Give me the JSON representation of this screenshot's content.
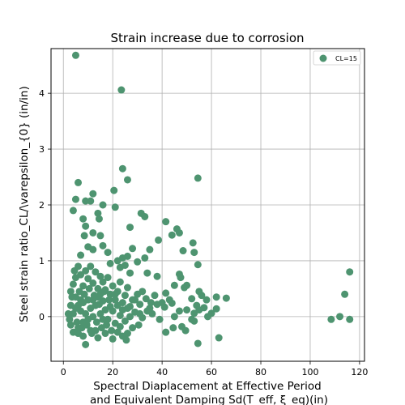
{
  "chart_data": {
    "type": "scatter",
    "title": "Strain increase due to corrosion",
    "xlabel_line1": "Spectral Diaplacement at Effective Period",
    "xlabel_line2": "and Equivalent Damping Sd(T_eff, ξ_eq)(in)",
    "ylabel": "Steel strain ratio_CL/\\varepsilon_{0} (in/in)",
    "xlim": [
      -5,
      122
    ],
    "ylim": [
      -0.8,
      4.8
    ],
    "x_ticks": [
      0,
      20,
      40,
      60,
      80,
      100,
      120
    ],
    "y_ticks": [
      0,
      1,
      2,
      3,
      4
    ],
    "grid": true,
    "legend_position": "top-right",
    "colors": {
      "series": "#4e9470",
      "grid": "#b0b0b0",
      "axis": "#000000"
    },
    "series": [
      {
        "name": "CL=15",
        "points": [
          [
            5,
            4.68
          ],
          [
            23.5,
            4.06
          ],
          [
            24,
            2.65
          ],
          [
            26,
            2.45
          ],
          [
            54.5,
            2.48
          ],
          [
            6,
            2.4
          ],
          [
            5,
            2.1
          ],
          [
            9,
            2.07
          ],
          [
            11,
            2.07
          ],
          [
            4,
            1.9
          ],
          [
            12,
            2.2
          ],
          [
            20.5,
            2.26
          ],
          [
            21,
            1.96
          ],
          [
            16,
            2.0
          ],
          [
            14,
            1.85
          ],
          [
            14.5,
            1.75
          ],
          [
            31.5,
            1.85
          ],
          [
            33,
            1.79
          ],
          [
            41.5,
            1.7
          ],
          [
            8,
            1.75
          ],
          [
            9,
            1.62
          ],
          [
            8.5,
            1.45
          ],
          [
            12,
            1.5
          ],
          [
            15,
            1.45
          ],
          [
            27,
            1.6
          ],
          [
            38.5,
            1.37
          ],
          [
            46,
            1.57
          ],
          [
            47,
            1.5
          ],
          [
            44,
            1.46
          ],
          [
            52.5,
            1.32
          ],
          [
            28,
            1.22
          ],
          [
            35,
            1.2
          ],
          [
            48.5,
            1.18
          ],
          [
            53,
            1.15
          ],
          [
            54.5,
            0.93
          ],
          [
            33,
            1.05
          ],
          [
            10,
            1.25
          ],
          [
            12,
            1.2
          ],
          [
            16,
            1.27
          ],
          [
            18,
            1.15
          ],
          [
            7,
            1.1
          ],
          [
            22,
            1.0
          ],
          [
            24,
            1.05
          ],
          [
            26,
            1.08
          ],
          [
            30,
            0.98
          ],
          [
            19,
            0.95
          ],
          [
            23,
            0.88
          ],
          [
            25,
            0.92
          ],
          [
            27,
            0.78
          ],
          [
            34,
            0.78
          ],
          [
            38,
            0.72
          ],
          [
            47,
            0.76
          ],
          [
            47.5,
            0.7
          ],
          [
            45,
            0.56
          ],
          [
            49,
            0.52
          ],
          [
            50,
            0.56
          ],
          [
            41.5,
            0.42
          ],
          [
            43,
            0.3
          ],
          [
            40,
            0.25
          ],
          [
            55,
            0.45
          ],
          [
            56,
            0.38
          ],
          [
            52,
            0.32
          ],
          [
            58,
            0.3
          ],
          [
            62,
            0.35
          ],
          [
            66,
            0.33
          ],
          [
            57,
            0.16
          ],
          [
            55,
            0.12
          ],
          [
            53,
            0.06
          ],
          [
            58.5,
            0.0
          ],
          [
            60,
            0.06
          ],
          [
            54,
            0.2
          ],
          [
            62,
            0.14
          ],
          [
            50,
            0.12
          ],
          [
            47,
            0.1
          ],
          [
            45,
            0.0
          ],
          [
            44,
            0.24
          ],
          [
            41,
            0.17
          ],
          [
            48,
            -0.18
          ],
          [
            49.5,
            -0.25
          ],
          [
            44.5,
            -0.2
          ],
          [
            41.5,
            -0.28
          ],
          [
            53,
            -0.08
          ],
          [
            52,
            -0.05
          ],
          [
            54.5,
            -0.48
          ],
          [
            63,
            -0.38
          ],
          [
            30,
            0.4
          ],
          [
            32,
            0.45
          ],
          [
            33.5,
            0.32
          ],
          [
            35,
            0.15
          ],
          [
            36,
            0.05
          ],
          [
            37,
            0.38
          ],
          [
            38,
            0.22
          ],
          [
            39,
            -0.05
          ],
          [
            30.5,
            -0.15
          ],
          [
            28,
            -0.2
          ],
          [
            26,
            -0.3
          ],
          [
            24,
            -0.35
          ],
          [
            22,
            -0.28
          ],
          [
            20,
            -0.4
          ],
          [
            25.5,
            -0.42
          ],
          [
            17,
            -0.3
          ],
          [
            14,
            -0.38
          ],
          [
            11,
            -0.25
          ],
          [
            9,
            -0.5
          ],
          [
            8,
            -0.35
          ],
          [
            6,
            -0.3
          ],
          [
            4,
            -0.28
          ],
          [
            3,
            -0.15
          ],
          [
            2.5,
            -0.05
          ],
          [
            2,
            0.05
          ],
          [
            3,
            0.2
          ],
          [
            3.5,
            0.35
          ],
          [
            3,
            0.45
          ],
          [
            4,
            0.58
          ],
          [
            5,
            0.7
          ],
          [
            4.5,
            0.82
          ],
          [
            6,
            0.9
          ],
          [
            7,
            0.75
          ],
          [
            8,
            0.55
          ],
          [
            9,
            0.82
          ],
          [
            10,
            0.68
          ],
          [
            11,
            0.9
          ],
          [
            12,
            0.6
          ],
          [
            13,
            0.8
          ],
          [
            14,
            0.5
          ],
          [
            15,
            0.72
          ],
          [
            16,
            0.62
          ],
          [
            17,
            0.48
          ],
          [
            18,
            0.7
          ],
          [
            19,
            0.4
          ],
          [
            20,
            0.55
          ],
          [
            21,
            0.3
          ],
          [
            22,
            0.45
          ],
          [
            23,
            0.62
          ],
          [
            24,
            0.25
          ],
          [
            25,
            0.38
          ],
          [
            26,
            0.52
          ],
          [
            27,
            0.18
          ],
          [
            28,
            0.3
          ],
          [
            29,
            0.08
          ],
          [
            31,
            0.22
          ],
          [
            32,
            -0.02
          ],
          [
            34,
            0.1
          ],
          [
            35.5,
            0.25
          ],
          [
            5,
            0.35
          ],
          [
            6,
            0.2
          ],
          [
            7,
            0.1
          ],
          [
            8,
            0.25
          ],
          [
            9,
            0.05
          ],
          [
            10,
            0.3
          ],
          [
            11,
            0.15
          ],
          [
            12,
            0.0
          ],
          [
            13,
            0.2
          ],
          [
            14,
            0.35
          ],
          [
            15,
            0.05
          ],
          [
            16,
            0.28
          ],
          [
            17,
            0.12
          ],
          [
            18,
            -0.05
          ],
          [
            19,
            0.18
          ],
          [
            20,
            0.1
          ],
          [
            21,
            -0.12
          ],
          [
            22,
            0.2
          ],
          [
            23,
            0.02
          ],
          [
            24,
            0.12
          ],
          [
            25,
            -0.08
          ],
          [
            26,
            0.15
          ],
          [
            5.5,
            -0.1
          ],
          [
            6.5,
            0.45
          ],
          [
            7.5,
            -0.2
          ],
          [
            8.5,
            0.4
          ],
          [
            9.5,
            -0.15
          ],
          [
            10.5,
            0.5
          ],
          [
            11.5,
            -0.3
          ],
          [
            12.5,
            0.38
          ],
          [
            13.5,
            -0.1
          ],
          [
            14.5,
            0.22
          ],
          [
            15.5,
            -0.2
          ],
          [
            16.5,
            0.45
          ],
          [
            17.5,
            -0.15
          ],
          [
            18.5,
            0.3
          ],
          [
            19.5,
            -0.25
          ],
          [
            4,
            0.05
          ],
          [
            5,
            0.15
          ],
          [
            6,
            -0.2
          ],
          [
            7,
            0.3
          ],
          [
            8,
            -0.1
          ],
          [
            10,
            -0.05
          ],
          [
            12,
            0.3
          ],
          [
            13,
            -0.25
          ],
          [
            15,
            0.4
          ],
          [
            16,
            -0.05
          ],
          [
            21,
            0.4
          ],
          [
            23,
            -0.18
          ],
          [
            27,
            0.0
          ],
          [
            29,
            0.3
          ],
          [
            31,
            0.05
          ],
          [
            108.5,
            -0.05
          ],
          [
            112,
            0.0
          ],
          [
            114,
            0.4
          ],
          [
            116,
            -0.05
          ],
          [
            116,
            0.8
          ]
        ]
      }
    ]
  }
}
